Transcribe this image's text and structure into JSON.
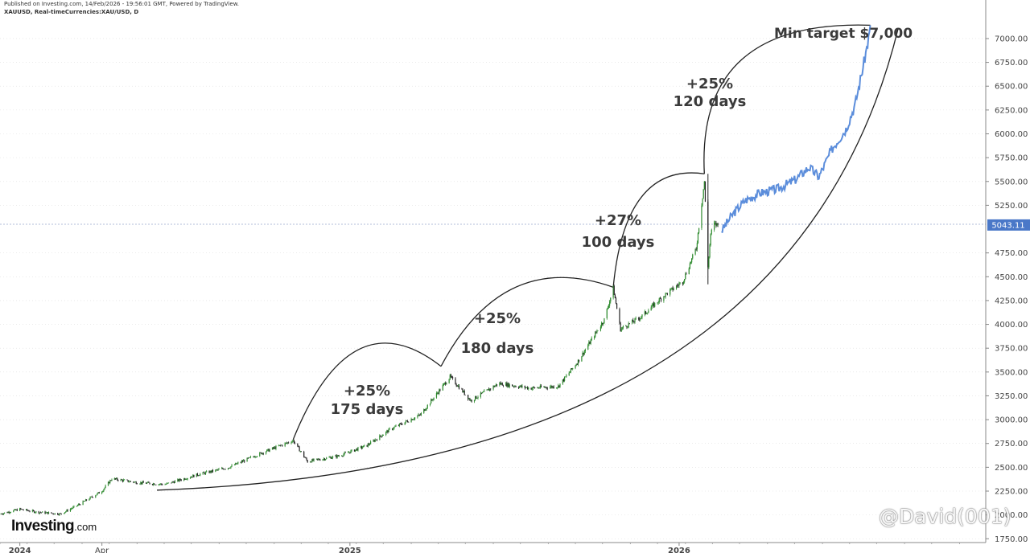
{
  "header": {
    "published": "Published on Investing.com, 14/Feb/2026 - 19:56:01 GMT, Powered by TradingView.",
    "symbol": "XAUUSD, Real-timeCurrencies:XAU/USD, D"
  },
  "logo": {
    "main": "Investing",
    "suffix": ".com"
  },
  "watermark": "@David(001)",
  "colors": {
    "price": "#444444",
    "up": "#2e8b2e",
    "down": "#222222",
    "projection": "#5b8ddb",
    "current_badge": "#4a78c8",
    "arc": "#222222",
    "grid": "#dddddd"
  },
  "chart_data": {
    "type": "line",
    "y_axis_position": "right",
    "ylim": [
      1710,
      7160
    ],
    "yticks": [
      {
        "value": 7000,
        "label": "7000.00"
      },
      {
        "value": 6750,
        "label": "6750.00"
      },
      {
        "value": 6500,
        "label": "6500.00"
      },
      {
        "value": 6250,
        "label": "6250.00"
      },
      {
        "value": 6000,
        "label": "6000.00"
      },
      {
        "value": 5750,
        "label": "5750.00"
      },
      {
        "value": 5500,
        "label": "5500.00"
      },
      {
        "value": 5250,
        "label": "5250.00"
      },
      {
        "value": 4750,
        "label": "4750.00"
      },
      {
        "value": 4500,
        "label": "4500.00"
      },
      {
        "value": 4250,
        "label": "4250.00"
      },
      {
        "value": 4000,
        "label": "4000.00"
      },
      {
        "value": 3750,
        "label": "3750.00"
      },
      {
        "value": 3500,
        "label": "3500.00"
      },
      {
        "value": 3250,
        "label": "3250.00"
      },
      {
        "value": 3000,
        "label": "3000.00"
      },
      {
        "value": 2750,
        "label": "2750.00"
      },
      {
        "value": 2500,
        "label": "2500.00"
      },
      {
        "value": 2250,
        "label": "2250.00"
      },
      {
        "value": 2000,
        "label": "2000.00"
      },
      {
        "value": 1750,
        "label": "1750.00"
      }
    ],
    "current_price": {
      "value": 5043.11,
      "label": "5043.11"
    },
    "xlim": [
      "2023-12-10",
      "2026-12-07"
    ],
    "xticks": [
      {
        "date": "2024-01-01",
        "label": "2024"
      },
      {
        "date": "2024-04-01",
        "label": "Apr"
      },
      {
        "date": "2025-01-01",
        "label": "2025"
      },
      {
        "date": "2026-01-01",
        "label": "2026"
      }
    ],
    "series": [
      {
        "style": "candles",
        "points": [
          [
            "2023-12-10",
            2010
          ],
          [
            "2024-01-01",
            2060
          ],
          [
            "2024-01-20",
            2030
          ],
          [
            "2024-02-15",
            2010
          ],
          [
            "2024-03-05",
            2100
          ],
          [
            "2024-04-01",
            2250
          ],
          [
            "2024-04-12",
            2380
          ],
          [
            "2024-05-10",
            2340
          ],
          [
            "2024-06-10",
            2320
          ],
          [
            "2024-07-15",
            2420
          ],
          [
            "2024-08-20",
            2500
          ],
          [
            "2024-09-25",
            2650
          ],
          [
            "2024-10-30",
            2780
          ],
          [
            "2024-11-15",
            2560
          ],
          [
            "2024-12-20",
            2620
          ],
          [
            "2025-01-20",
            2730
          ],
          [
            "2025-02-15",
            2900
          ],
          [
            "2025-03-20",
            3050
          ],
          [
            "2025-04-22",
            3450
          ],
          [
            "2025-05-15",
            3200
          ],
          [
            "2025-06-15",
            3380
          ],
          [
            "2025-07-20",
            3330
          ],
          [
            "2025-08-20",
            3350
          ],
          [
            "2025-09-10",
            3600
          ],
          [
            "2025-10-10",
            4050
          ],
          [
            "2025-10-20",
            4380
          ],
          [
            "2025-10-28",
            3950
          ],
          [
            "2025-11-20",
            4080
          ],
          [
            "2025-12-15",
            4300
          ],
          [
            "2026-01-05",
            4450
          ],
          [
            "2026-01-20",
            4800
          ],
          [
            "2026-01-29",
            5500
          ],
          [
            "2026-02-02",
            4600
          ],
          [
            "2026-02-05",
            4950
          ],
          [
            "2026-02-09",
            5050
          ],
          [
            "2026-02-14",
            5043
          ]
        ]
      },
      {
        "style": "projection",
        "points": [
          [
            "2026-02-17",
            4980
          ],
          [
            "2026-03-01",
            5150
          ],
          [
            "2026-03-15",
            5300
          ],
          [
            "2026-04-01",
            5380
          ],
          [
            "2026-04-20",
            5420
          ],
          [
            "2026-05-10",
            5520
          ],
          [
            "2026-05-25",
            5650
          ],
          [
            "2026-06-05",
            5550
          ],
          [
            "2026-06-20",
            5850
          ],
          [
            "2026-07-05",
            6050
          ],
          [
            "2026-07-15",
            6300
          ],
          [
            "2026-07-25",
            6750
          ],
          [
            "2026-08-01",
            7100
          ]
        ]
      }
    ],
    "annotations": [
      {
        "lines": [
          "+25%",
          "175 days"
        ]
      },
      {
        "lines": [
          "+25%",
          "180 days"
        ]
      },
      {
        "lines": [
          "+27%",
          "100 days"
        ]
      },
      {
        "lines": [
          "+25%",
          "120 days"
        ]
      },
      {
        "lines": [
          "Min target $7,000"
        ]
      }
    ]
  }
}
